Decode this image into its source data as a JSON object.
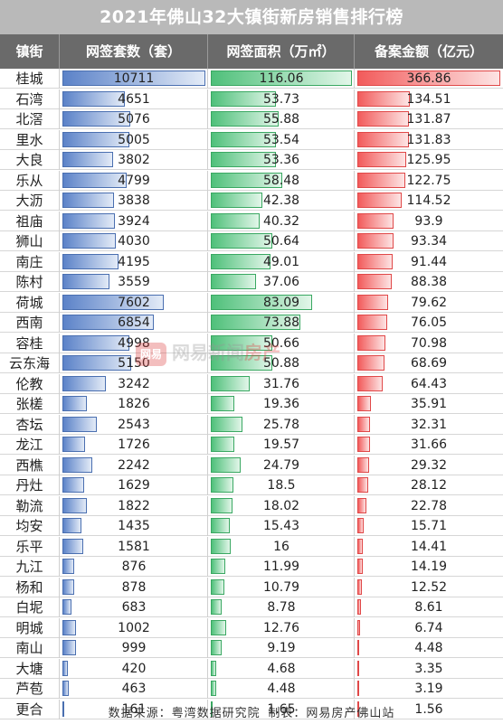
{
  "title": "2021年佛山32大镇街新房销售排行榜",
  "headers": {
    "town": "镇街",
    "units": "网签套数（套）",
    "area": "网签面积（万㎡）",
    "amount": "备案金额（亿元）"
  },
  "footer": "数据来源：粤湾数据研究院  制表：网易房产佛山站",
  "watermark": {
    "logo": "网易",
    "text1": "网易新闻",
    "text2": "房产"
  },
  "colors": {
    "units": "#5b82c8",
    "area": "#4fc07a",
    "amount": "#f25b5b"
  },
  "chart_data": {
    "type": "table",
    "title": "2021年佛山32大镇街新房销售排行榜",
    "columns": [
      "镇街",
      "网签套数（套）",
      "网签面积（万㎡）",
      "备案金额（亿元）"
    ],
    "rows": [
      {
        "town": "桂城",
        "units": "10711",
        "area": "116.06",
        "amount": "366.86"
      },
      {
        "town": "石湾",
        "units": "4651",
        "area": "53.73",
        "amount": "134.51"
      },
      {
        "town": "北滘",
        "units": "5076",
        "area": "55.88",
        "amount": "131.87"
      },
      {
        "town": "里水",
        "units": "5005",
        "area": "53.54",
        "amount": "131.83"
      },
      {
        "town": "大良",
        "units": "3802",
        "area": "53.36",
        "amount": "125.95"
      },
      {
        "town": "乐从",
        "units": "4799",
        "area": "58.48",
        "amount": "122.75"
      },
      {
        "town": "大沥",
        "units": "3838",
        "area": "42.38",
        "amount": "114.52"
      },
      {
        "town": "祖庙",
        "units": "3924",
        "area": "40.32",
        "amount": "93.9"
      },
      {
        "town": "狮山",
        "units": "4030",
        "area": "50.64",
        "amount": "93.34"
      },
      {
        "town": "南庄",
        "units": "4195",
        "area": "49.01",
        "amount": "91.44"
      },
      {
        "town": "陈村",
        "units": "3559",
        "area": "37.06",
        "amount": "88.38"
      },
      {
        "town": "荷城",
        "units": "7602",
        "area": "83.09",
        "amount": "79.62"
      },
      {
        "town": "西南",
        "units": "6854",
        "area": "73.88",
        "amount": "76.05"
      },
      {
        "town": "容桂",
        "units": "4998",
        "area": "50.66",
        "amount": "70.98"
      },
      {
        "town": "云东海",
        "units": "5150",
        "area": "50.88",
        "amount": "68.69"
      },
      {
        "town": "伦教",
        "units": "3242",
        "area": "31.76",
        "amount": "64.43"
      },
      {
        "town": "张槎",
        "units": "1826",
        "area": "19.36",
        "amount": "35.91"
      },
      {
        "town": "杏坛",
        "units": "2543",
        "area": "25.78",
        "amount": "32.31"
      },
      {
        "town": "龙江",
        "units": "1726",
        "area": "19.57",
        "amount": "31.66"
      },
      {
        "town": "西樵",
        "units": "2242",
        "area": "24.79",
        "amount": "29.32"
      },
      {
        "town": "丹灶",
        "units": "1629",
        "area": "18.5",
        "amount": "28.12"
      },
      {
        "town": "勒流",
        "units": "1822",
        "area": "18.02",
        "amount": "22.78"
      },
      {
        "town": "均安",
        "units": "1435",
        "area": "15.43",
        "amount": "15.71"
      },
      {
        "town": "乐平",
        "units": "1581",
        "area": "16",
        "amount": "14.41"
      },
      {
        "town": "九江",
        "units": "876",
        "area": "11.99",
        "amount": "14.19"
      },
      {
        "town": "杨和",
        "units": "878",
        "area": "10.79",
        "amount": "12.52"
      },
      {
        "town": "白坭",
        "units": "683",
        "area": "8.78",
        "amount": "8.61"
      },
      {
        "town": "明城",
        "units": "1002",
        "area": "12.76",
        "amount": "6.74"
      },
      {
        "town": "南山",
        "units": "999",
        "area": "9.19",
        "amount": "4.48"
      },
      {
        "town": "大塘",
        "units": "420",
        "area": "4.68",
        "amount": "3.35"
      },
      {
        "town": "芦苞",
        "units": "463",
        "area": "4.48",
        "amount": "3.19"
      },
      {
        "town": "更合",
        "units": "161",
        "area": "1.65",
        "amount": "1.56"
      }
    ]
  }
}
